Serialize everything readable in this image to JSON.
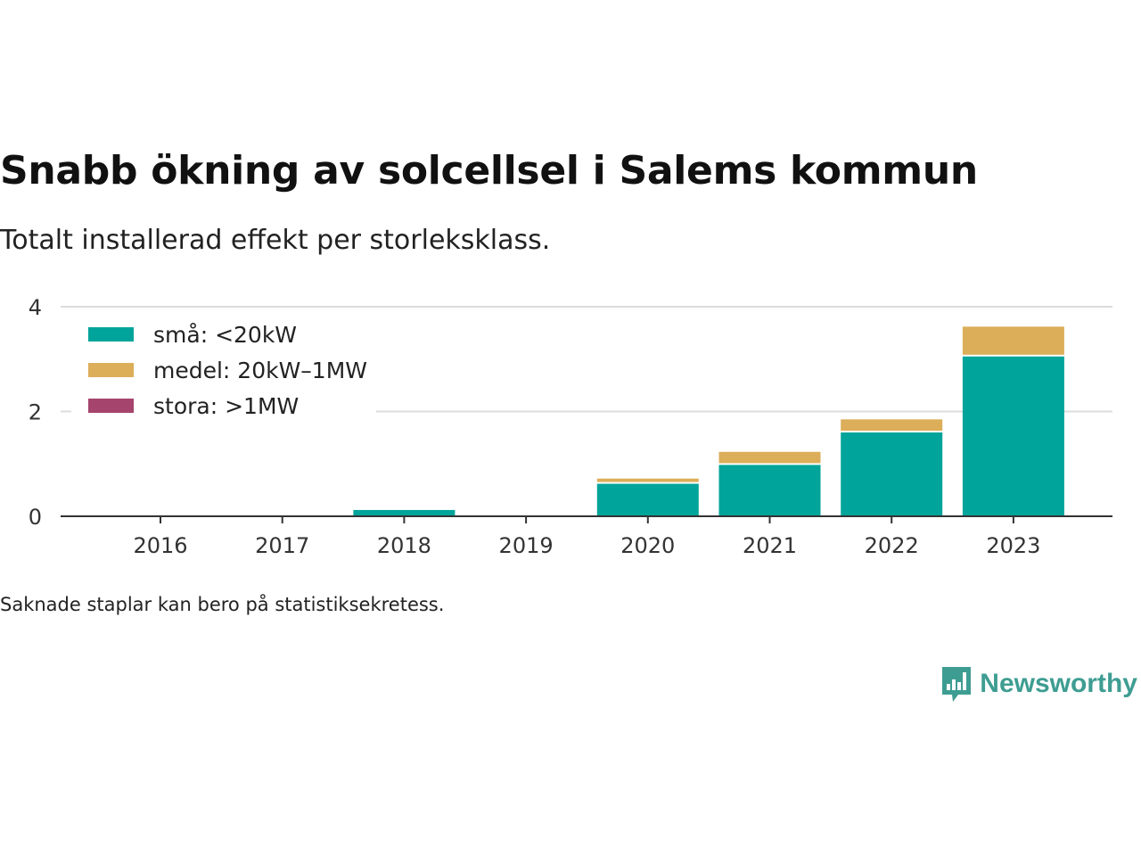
{
  "title": "Snabb ökning av solcellsel i Salems kommun",
  "subtitle": "Totalt installerad effekt per storleksklass.",
  "footnote": "Saknade staplar kan bero på statistiksekretess.",
  "brand": {
    "name": "Newsworthy",
    "icon": "newsworthy-logo-icon",
    "color": "#3e9d92"
  },
  "chart_data": {
    "type": "bar",
    "stacked": true,
    "categories": [
      "2016",
      "2017",
      "2018",
      "2019",
      "2020",
      "2021",
      "2022",
      "2023"
    ],
    "series": [
      {
        "name": "små: <20kW",
        "color": "#00a49a",
        "values": [
          0,
          0,
          0.12,
          0,
          0.62,
          0.98,
          1.6,
          3.05
        ]
      },
      {
        "name": "medel: 20kW–1MW",
        "color": "#dcae5a",
        "values": [
          0,
          0,
          0,
          0,
          0.1,
          0.25,
          0.25,
          0.57
        ]
      },
      {
        "name": "stora: >1MW",
        "color": "#a5446c",
        "values": [
          0,
          0,
          0,
          0,
          0,
          0,
          0,
          0
        ]
      }
    ],
    "ylim": [
      0,
      4
    ],
    "yticks": [
      0,
      2,
      4
    ],
    "grid": true,
    "legend": "top-left"
  }
}
